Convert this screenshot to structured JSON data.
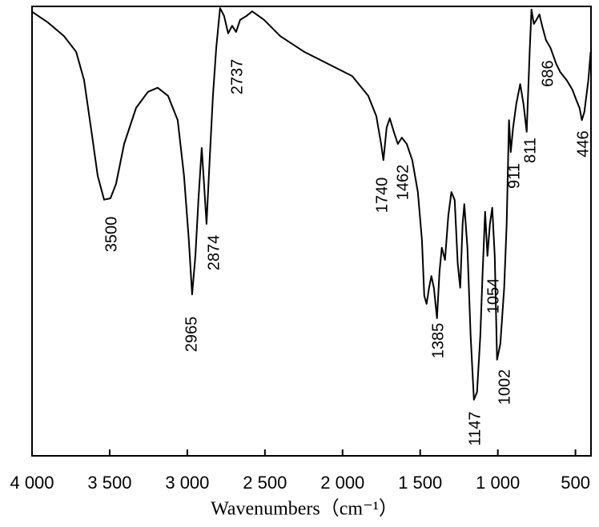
{
  "chart_data": {
    "type": "line",
    "xlabel": "Wavenumbers（cm⁻¹）",
    "xlim": [
      4000,
      400
    ],
    "ylim": [
      0,
      100
    ],
    "xticks": [
      {
        "value": 4000,
        "label": "4 000"
      },
      {
        "value": 3500,
        "label": "3 500"
      },
      {
        "value": 3000,
        "label": "3 000"
      },
      {
        "value": 2500,
        "label": "2 500"
      },
      {
        "value": 2000,
        "label": "2 000"
      },
      {
        "value": 1500,
        "label": "1 500"
      },
      {
        "value": 1000,
        "label": "1 000"
      },
      500
    ],
    "color": "#000000",
    "x": [
      4000,
      3897,
      3794,
      3716,
      3665,
      3613,
      3577,
      3536,
      3495,
      3459,
      3407,
      3330,
      3253,
      3191,
      3124,
      3062,
      3021,
      2990,
      2969,
      2948,
      2928,
      2907,
      2892,
      2876,
      2856,
      2835,
      2814,
      2789,
      2763,
      2737,
      2711,
      2686,
      2660,
      2618,
      2582,
      2505,
      2402,
      2247,
      2093,
      1938,
      1835,
      1783,
      1752,
      1737,
      1716,
      1696,
      1670,
      1644,
      1618,
      1587,
      1551,
      1515,
      1489,
      1474,
      1459,
      1443,
      1428,
      1412,
      1392,
      1376,
      1361,
      1340,
      1319,
      1299,
      1278,
      1258,
      1242,
      1227,
      1216,
      1196,
      1175,
      1154,
      1134,
      1113,
      1098,
      1082,
      1067,
      1051,
      1036,
      1020,
      1005,
      984,
      959,
      943,
      928,
      917,
      902,
      881,
      856,
      835,
      814,
      794,
      783,
      768,
      752,
      732,
      711,
      690,
      660,
      624,
      598,
      557,
      520,
      495,
      474,
      459,
      443,
      417,
      402
    ],
    "values": [
      98.8,
      96.4,
      93.4,
      89.9,
      83.6,
      71.2,
      62.3,
      57.0,
      57.3,
      60.5,
      69.4,
      77.4,
      81.0,
      81.9,
      80.1,
      74.7,
      62.3,
      48.0,
      35.9,
      44.5,
      57.0,
      68.5,
      60.5,
      51.6,
      65.8,
      80.1,
      90.7,
      99.6,
      97.9,
      94.0,
      95.7,
      94.3,
      97.0,
      97.9,
      98.9,
      97.0,
      93.4,
      89.9,
      87.2,
      84.5,
      80.1,
      75.6,
      69.4,
      65.8,
      73.0,
      75.1,
      72.1,
      69.4,
      70.8,
      69.4,
      65.8,
      58.7,
      48.0,
      35.6,
      33.8,
      37.4,
      40.0,
      37.4,
      30.6,
      40.9,
      46.3,
      43.6,
      53.4,
      58.7,
      56.9,
      42.7,
      37.4,
      51.6,
      56.0,
      46.3,
      26.7,
      12.5,
      14.2,
      26.7,
      40.9,
      54.3,
      44.5,
      51.6,
      55.2,
      44.5,
      21.4,
      24.9,
      37.4,
      51.6,
      74.7,
      67.6,
      73.0,
      78.3,
      82.7,
      78.3,
      72.1,
      90.7,
      99.3,
      96.1,
      97.0,
      98.2,
      95.2,
      92.5,
      90.7,
      87.2,
      85.4,
      83.6,
      81.5,
      79.2,
      77.4,
      74.7,
      76.5,
      83.6,
      89.9
    ],
    "annotations": [
      "3500",
      "2965",
      "2874",
      "2737",
      "1740",
      "1462",
      "1385",
      "1147",
      "1054",
      "1002",
      "911",
      "811",
      "686",
      "446"
    ]
  }
}
